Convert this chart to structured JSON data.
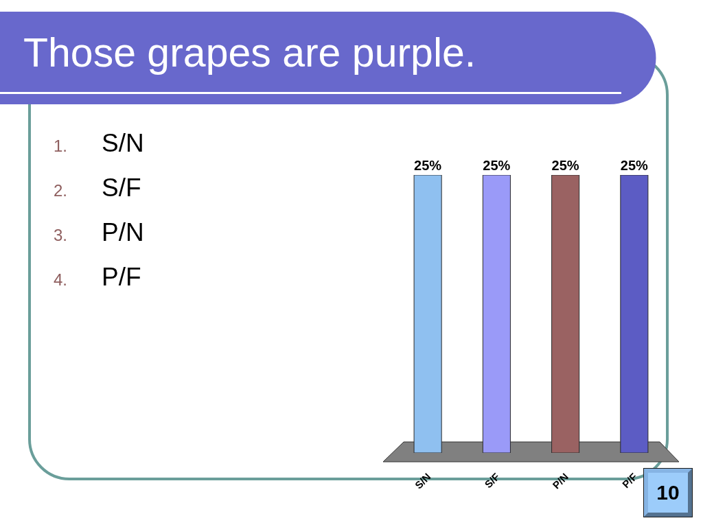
{
  "chart_data": {
    "type": "bar",
    "title": "Those grapes are purple.",
    "categories": [
      "S/N",
      "S/F",
      "P/N",
      "P/F"
    ],
    "values": [
      25,
      25,
      25,
      25
    ],
    "colors": [
      "#8fc0f0",
      "#9a9af8",
      "#9a6262",
      "#5c5cc4"
    ],
    "value_labels": [
      "25%",
      "25%",
      "25%",
      "25%"
    ],
    "tick_labels": "x",
    "annotations": [
      "1. S/N",
      "2. S/F",
      "3. P/N",
      "4. P/F",
      "10"
    ]
  }
}
